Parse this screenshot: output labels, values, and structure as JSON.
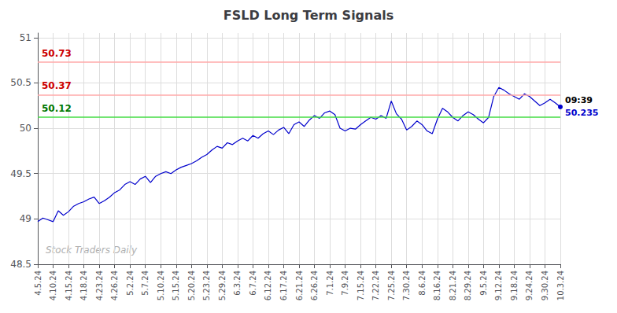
{
  "chart_data": {
    "type": "line",
    "title": "FSLD Long Term Signals",
    "categories": [
      "4.5.24",
      null,
      null,
      "4.10.24",
      null,
      null,
      "4.15.24",
      null,
      null,
      "4.18.24",
      null,
      null,
      "4.23.24",
      null,
      null,
      "4.26.24",
      null,
      null,
      "5.2.24",
      null,
      null,
      "5.7.24",
      null,
      null,
      "5.10.24",
      null,
      null,
      "5.15.24",
      null,
      null,
      "5.20.24",
      null,
      null,
      "5.23.24",
      null,
      null,
      "5.29.24",
      null,
      null,
      "6.3.24",
      null,
      null,
      "6.7.24",
      null,
      null,
      "6.12.24",
      null,
      null,
      "6.17.24",
      null,
      null,
      "6.21.24",
      null,
      null,
      "6.26.24",
      null,
      null,
      "7.1.24",
      null,
      null,
      "7.9.24",
      null,
      null,
      "7.15.24",
      null,
      null,
      "7.22.24",
      null,
      null,
      "7.25.24",
      null,
      null,
      "7.30.24",
      null,
      null,
      "8.6.24",
      null,
      null,
      "8.16.24",
      null,
      null,
      "8.21.24",
      null,
      null,
      "8.29.24",
      null,
      null,
      "9.5.24",
      null,
      null,
      "9.12.24",
      null,
      null,
      "9.18.24",
      null,
      null,
      "9.24.24",
      null,
      null,
      "9.30.24",
      null,
      null,
      "10.3.24"
    ],
    "values": [
      48.97,
      49.01,
      48.99,
      48.97,
      49.09,
      49.04,
      49.08,
      49.14,
      49.17,
      49.19,
      49.22,
      49.24,
      49.17,
      49.2,
      49.24,
      49.29,
      49.32,
      49.38,
      49.41,
      49.38,
      49.44,
      49.47,
      49.4,
      49.47,
      49.5,
      49.52,
      49.5,
      49.54,
      49.57,
      49.59,
      49.61,
      49.64,
      49.68,
      49.71,
      49.76,
      49.8,
      49.78,
      49.84,
      49.82,
      49.86,
      49.89,
      49.86,
      49.92,
      49.89,
      49.94,
      49.97,
      49.93,
      49.98,
      50.01,
      49.94,
      50.04,
      50.07,
      50.02,
      50.09,
      50.14,
      50.11,
      50.17,
      50.19,
      50.15,
      50.0,
      49.97,
      50.0,
      49.99,
      50.04,
      50.08,
      50.12,
      50.1,
      50.14,
      50.11,
      50.3,
      50.16,
      50.1,
      49.98,
      50.02,
      50.08,
      50.04,
      49.97,
      49.94,
      50.1,
      50.22,
      50.18,
      50.12,
      50.08,
      50.14,
      50.18,
      50.15,
      50.1,
      50.06,
      50.12,
      50.35,
      50.45,
      50.42,
      50.38,
      50.35,
      50.32,
      50.38,
      50.35,
      50.3,
      50.25,
      50.28,
      50.32,
      50.28,
      50.235
    ],
    "color": "#0000cc",
    "ylim": [
      48.5,
      51.05
    ],
    "yticks": [
      48.5,
      49,
      49.5,
      50,
      50.5,
      51
    ],
    "grid": true,
    "hlines": [
      {
        "y": 50.73,
        "label": "50.73",
        "color": "#ffaaaa",
        "label_color": "#cc0000"
      },
      {
        "y": 50.37,
        "label": "50.37",
        "color": "#ffaaaa",
        "label_color": "#cc0000"
      },
      {
        "y": 50.12,
        "label": "50.12",
        "color": "#44dd44",
        "label_color": "#007700"
      }
    ],
    "end_labels": [
      {
        "text": "09:39",
        "color": "#000000"
      },
      {
        "text": "50.235",
        "color": "#0000cc"
      }
    ],
    "watermark": {
      "text": "Stock Traders Daily",
      "color": "#b0b0b0"
    }
  }
}
